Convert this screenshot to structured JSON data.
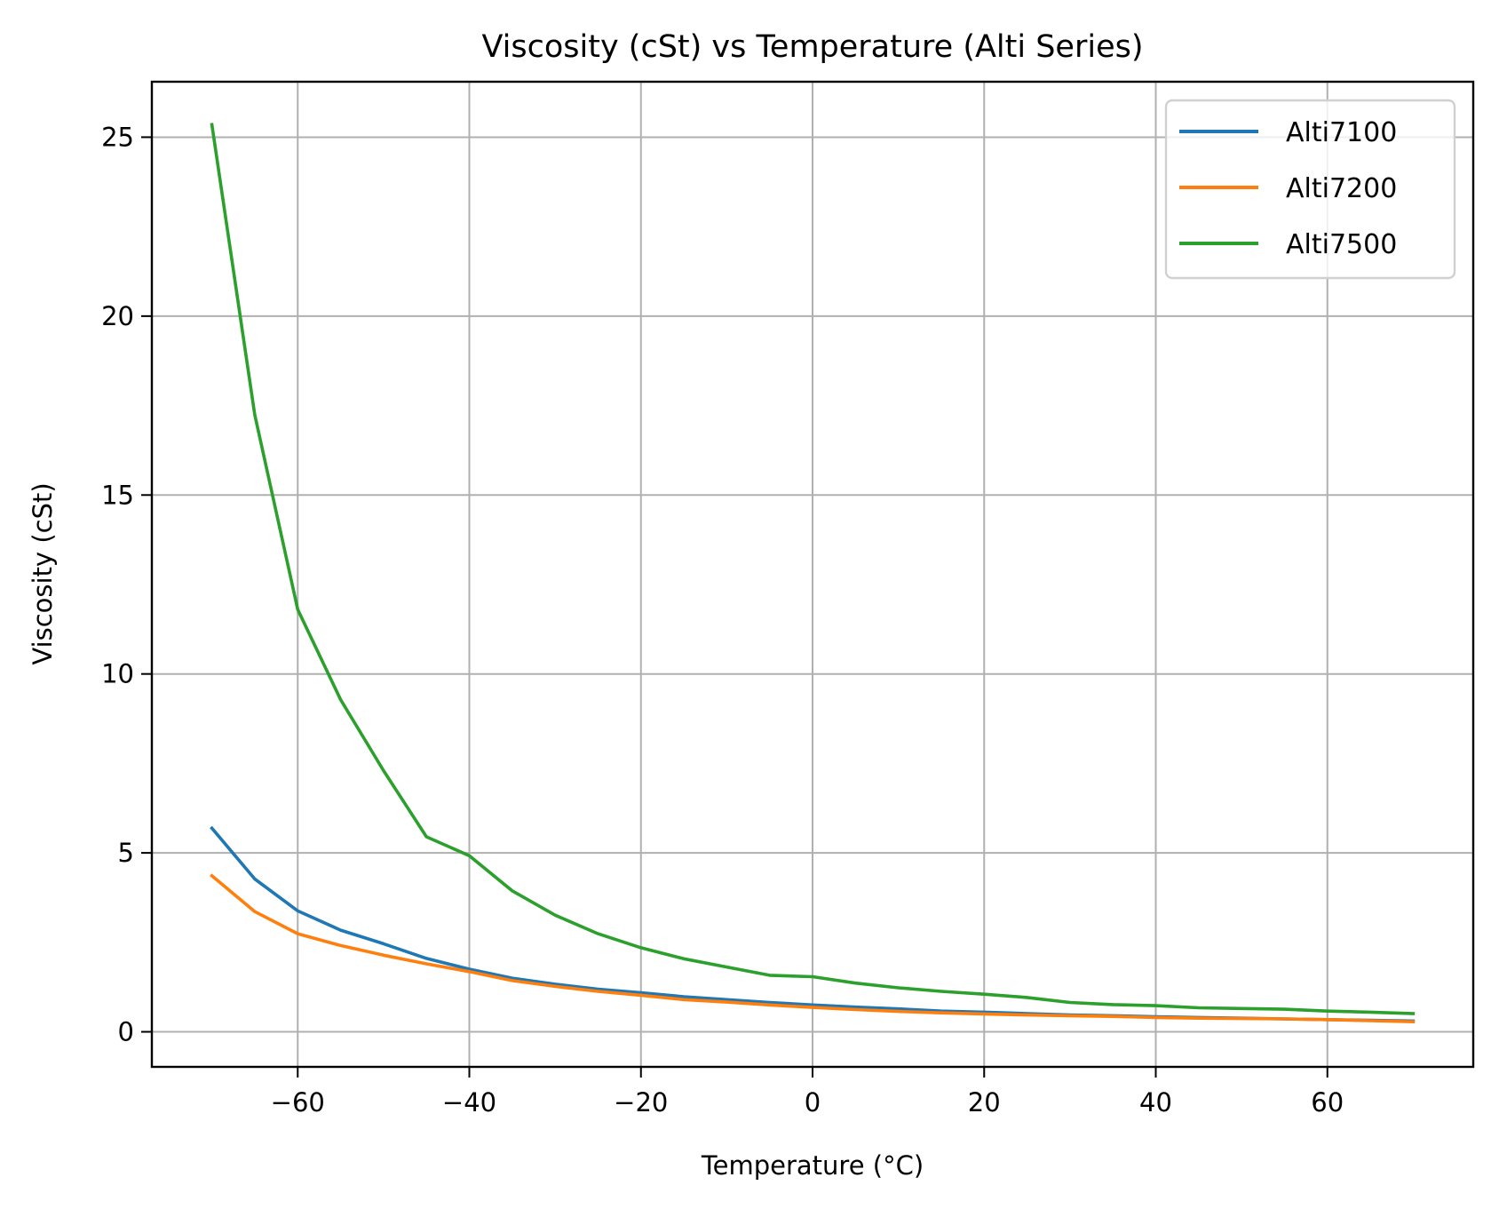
{
  "chart_data": {
    "type": "line",
    "title": "Viscosity (cSt) vs Temperature (Alti Series)",
    "xlabel": "Temperature (°C)",
    "ylabel": "Viscosity (cSt)",
    "xlim": [
      -77,
      77
    ],
    "ylim": [
      -0.98,
      26.55
    ],
    "xticks": [
      -60,
      -40,
      -20,
      0,
      20,
      40,
      60
    ],
    "xtick_labels": [
      "−60",
      "−40",
      "−20",
      "0",
      "20",
      "40",
      "60"
    ],
    "yticks": [
      0,
      5,
      10,
      15,
      20,
      25
    ],
    "ytick_labels": [
      "0",
      "5",
      "10",
      "15",
      "20",
      "25"
    ],
    "grid": true,
    "legend_position": "top-right",
    "x": [
      -70,
      -65,
      -60,
      -55,
      -50,
      -45,
      -40,
      -35,
      -30,
      -25,
      -20,
      -15,
      -10,
      -5,
      0,
      5,
      10,
      15,
      20,
      25,
      30,
      35,
      40,
      45,
      50,
      55,
      60,
      65,
      70
    ],
    "series": [
      {
        "name": "Alti7100",
        "color": "#1f77b4",
        "values": [
          5.69,
          4.27,
          3.38,
          2.84,
          2.46,
          2.05,
          1.75,
          1.5,
          1.33,
          1.19,
          1.09,
          0.98,
          0.9,
          0.82,
          0.75,
          0.69,
          0.64,
          0.58,
          0.55,
          0.51,
          0.47,
          0.45,
          0.42,
          0.4,
          0.38,
          0.36,
          0.34,
          0.32,
          0.3
        ]
      },
      {
        "name": "Alti7200",
        "color": "#ff7f0e",
        "values": [
          4.36,
          3.36,
          2.74,
          2.41,
          2.14,
          1.9,
          1.68,
          1.43,
          1.27,
          1.13,
          1.02,
          0.9,
          0.83,
          0.75,
          0.68,
          0.62,
          0.57,
          0.53,
          0.5,
          0.47,
          0.45,
          0.43,
          0.4,
          0.38,
          0.37,
          0.36,
          0.34,
          0.31,
          0.28
        ]
      },
      {
        "name": "Alti7500",
        "color": "#2ca02c",
        "values": [
          25.35,
          17.24,
          11.8,
          9.28,
          7.3,
          5.45,
          4.92,
          3.94,
          3.26,
          2.74,
          2.35,
          2.04,
          1.81,
          1.58,
          1.54,
          1.36,
          1.23,
          1.13,
          1.05,
          0.96,
          0.82,
          0.76,
          0.73,
          0.67,
          0.65,
          0.63,
          0.58,
          0.55,
          0.51
        ]
      }
    ]
  }
}
